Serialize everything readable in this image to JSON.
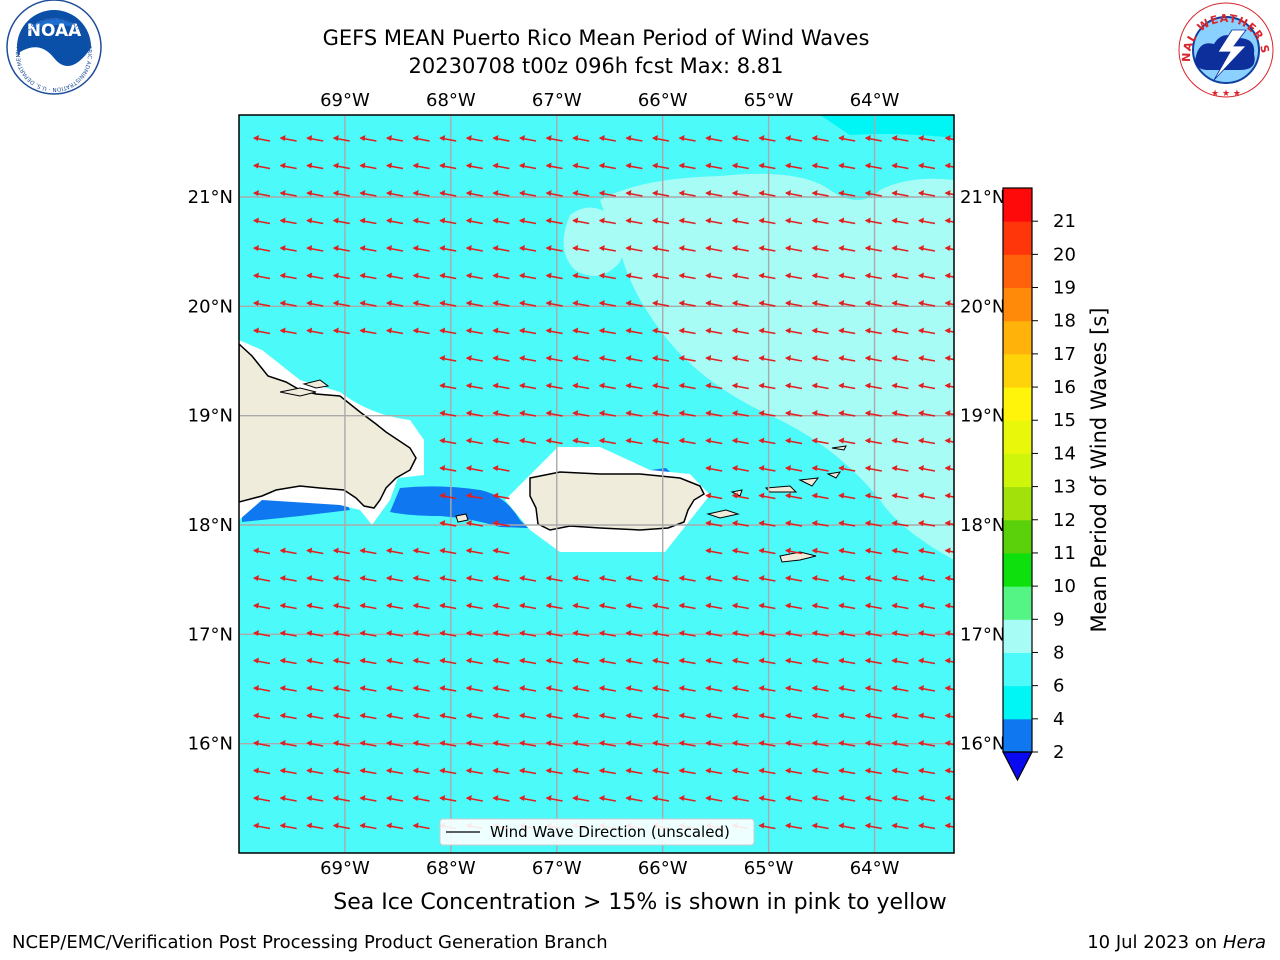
{
  "header": {
    "title_line1": "GEFS MEAN Puerto Rico Mean Period of Wind Waves",
    "title_line2": "20230708 t00z 096h fcst   Max: 8.81"
  },
  "logos": {
    "left": {
      "text": "NOAA",
      "ring_text": "NATIONAL OCEANIC AND ATMOSPHERIC ADMINISTRATION · U.S. DEPARTMENT OF COMMERCE",
      "color": "#1f4e9a"
    },
    "right": {
      "ring_text": "NATIONAL WEATHER SERVICE",
      "color": "#d9242b"
    }
  },
  "map": {
    "lon_range": [
      -70.0,
      -63.25
    ],
    "lat_range": [
      15.0,
      21.75
    ],
    "lon_ticks": [
      "69°W",
      "68°W",
      "67°W",
      "66°W",
      "65°W",
      "64°W"
    ],
    "lat_ticks": [
      "16°N",
      "17°N",
      "18°N",
      "19°N",
      "20°N",
      "21°N"
    ],
    "gridlines": true,
    "legend": {
      "label": "Wind Wave Direction (unscaled)",
      "placement": "bottom-center"
    },
    "arrow_color": "#e02020",
    "land_color": "#efecdc",
    "sea_color": "#4dfafa"
  },
  "colorbar": {
    "label": "Mean Period of Wind Waves [s]",
    "ticks": [
      "2",
      "4",
      "6",
      "8",
      "9",
      "10",
      "11",
      "12",
      "13",
      "14",
      "15",
      "16",
      "17",
      "18",
      "19",
      "20",
      "21"
    ],
    "colors": [
      "#0f77f0",
      "#00f5f5",
      "#4dfafa",
      "#a7fdf5",
      "#55f585",
      "#0de00d",
      "#5bd10b",
      "#a3e10a",
      "#cff60a",
      "#e9f70a",
      "#fff40a",
      "#ffd30a",
      "#ffb20a",
      "#ff8a0a",
      "#ff620a",
      "#ff360a",
      "#ff0a0a"
    ],
    "underflow_color": "#0a0af0"
  },
  "footer": {
    "note": "Sea Ice Concentration > 15% is shown in pink to yellow",
    "credit_left": "NCEP/EMC/Verification Post Processing Product Generation Branch",
    "credit_right_date": "10 Jul 2023 on",
    "credit_right_host": "Hera"
  }
}
